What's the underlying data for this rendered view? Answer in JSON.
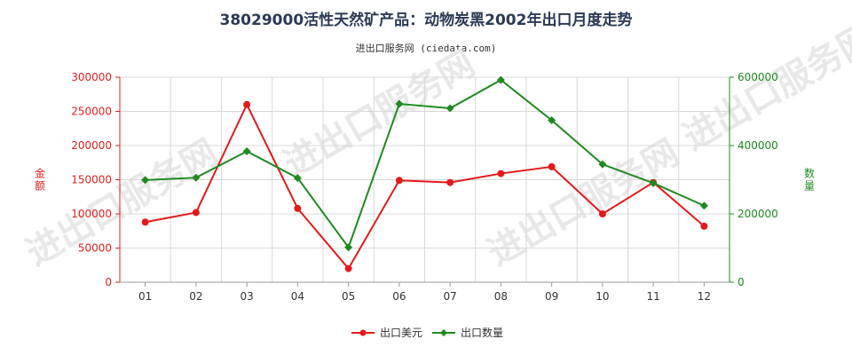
{
  "chart_data": {
    "type": "line",
    "title": "38029000活性天然矿产品：动物炭黑2002年出口月度走势",
    "subtitle": "进出口服务网 (ciedata.com)",
    "categories": [
      "01",
      "02",
      "03",
      "04",
      "05",
      "06",
      "07",
      "08",
      "09",
      "10",
      "11",
      "12"
    ],
    "ylabel_left": "金额",
    "ylabel_right": "数量",
    "ylim_left": [
      0,
      300000
    ],
    "ylim_right": [
      0,
      600000
    ],
    "yticks_left": [
      "0",
      "50000",
      "100000",
      "150000",
      "200000",
      "250000",
      "300000"
    ],
    "yticks_right": [
      "0",
      "200000",
      "400000",
      "600000"
    ],
    "grid": true,
    "legend_position": "bottom-center",
    "series": [
      {
        "name": "出口美元",
        "axis": "left",
        "color": "#e31a1c",
        "values": [
          88000,
          102000,
          260000,
          108000,
          20000,
          149000,
          146000,
          159000,
          169000,
          100000,
          146000,
          82000
        ]
      },
      {
        "name": "出口数量",
        "axis": "right",
        "color": "#1f8a1f",
        "values": [
          299000,
          306000,
          383000,
          305000,
          102000,
          522000,
          509000,
          592000,
          474000,
          345000,
          290000,
          224000
        ]
      }
    ],
    "watermark": "进出口服务网"
  }
}
